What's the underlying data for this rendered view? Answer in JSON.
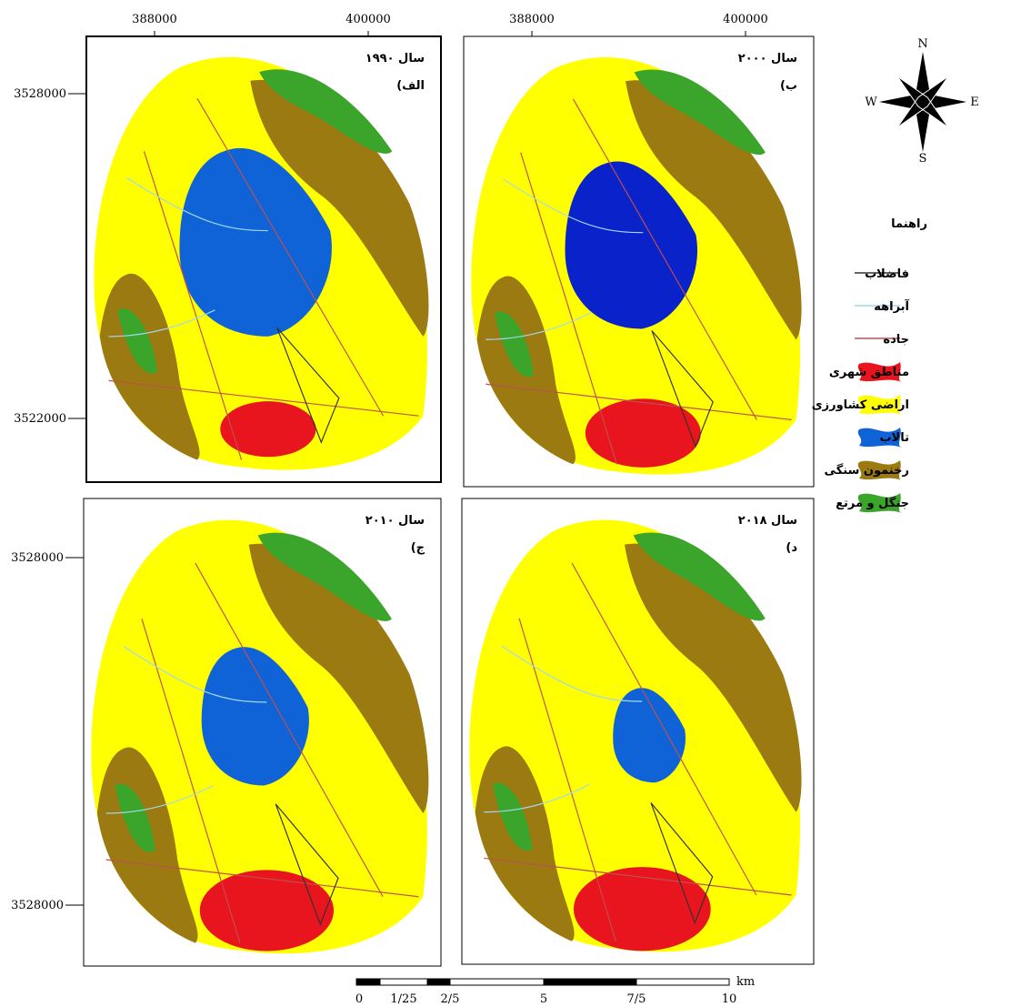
{
  "panels": [
    {
      "title": "سال ۱۹۹۰",
      "label": "الف)",
      "x_ticks": [
        "388000",
        "400000"
      ],
      "y_ticks": [
        "3528000",
        "3522000"
      ]
    },
    {
      "title": "سال ۲۰۰۰",
      "label": "ب)",
      "x_ticks": [
        "388000",
        "400000"
      ]
    },
    {
      "title": "سال ۲۰۱۰",
      "label": "ج)",
      "y_ticks": [
        "3528000",
        "3528000"
      ]
    },
    {
      "title": "سال ۲۰۱۸",
      "label": "د)"
    }
  ],
  "compass": {
    "n": "N",
    "s": "S",
    "e": "E",
    "w": "W"
  },
  "legend": {
    "title": "راهنما",
    "items": [
      "فاضلاب",
      "آبراهه",
      "جاده",
      "مناطق شهری",
      "اراضی کشاورزی",
      "تالاب",
      "رخنمون سنگی",
      "جنگل و مرتع"
    ]
  },
  "scale_bar": {
    "labels": [
      "0",
      "1/25",
      "2/5",
      "5",
      "7/5",
      "10"
    ],
    "unit": "km"
  }
}
